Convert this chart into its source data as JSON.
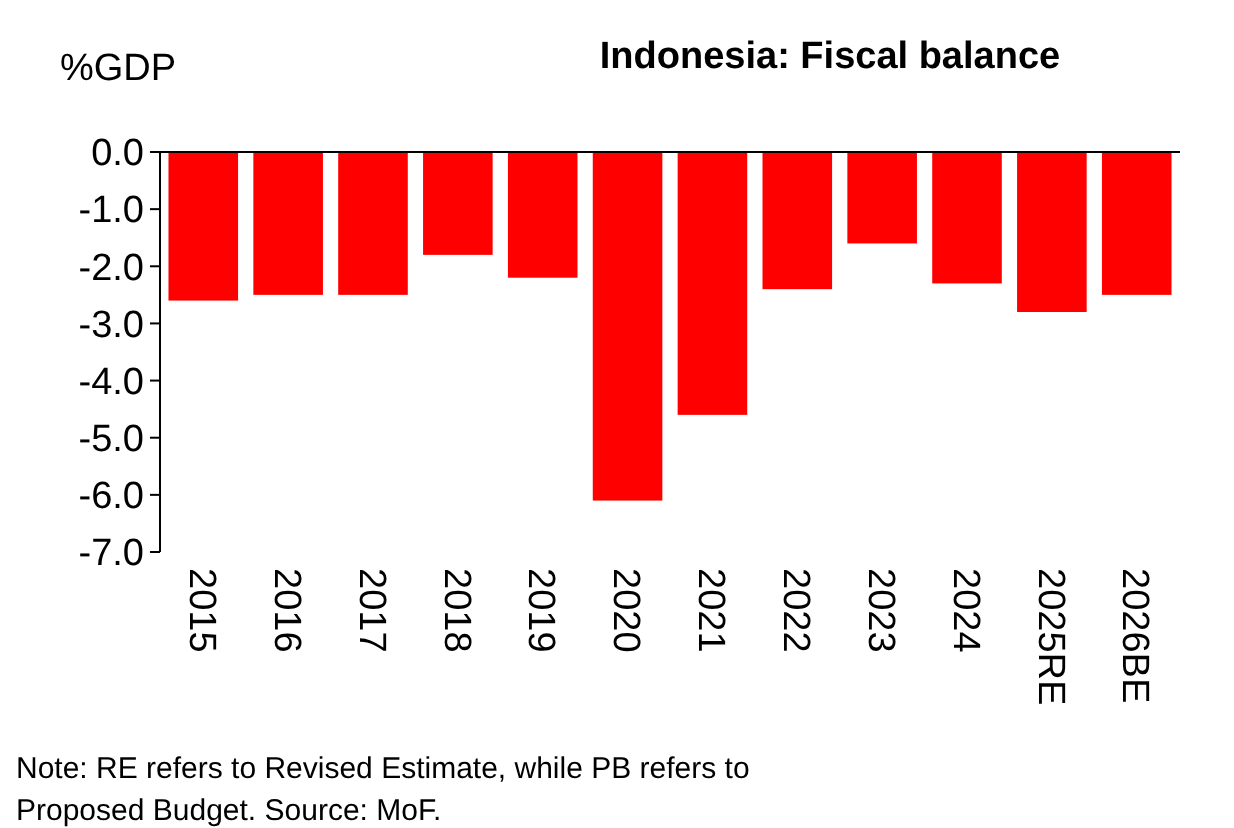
{
  "chart_data": {
    "type": "bar",
    "title": "Indonesia: Fiscal balance",
    "ylabel": "%GDP",
    "categories": [
      "2015",
      "2016",
      "2017",
      "2018",
      "2019",
      "2020",
      "2021",
      "2022",
      "2023",
      "2024",
      "2025RE",
      "2026BE"
    ],
    "values": [
      -2.6,
      -2.5,
      -2.5,
      -1.8,
      -2.2,
      -6.1,
      -4.6,
      -2.4,
      -1.6,
      -2.3,
      -2.8,
      -2.5
    ],
    "color": "#ff0000",
    "ylim": [
      -7,
      0
    ],
    "yticks": [
      {
        "value": 0,
        "label": "0.0"
      },
      {
        "value": -1,
        "label": "-1.0"
      },
      {
        "value": -2,
        "label": "-2.0"
      },
      {
        "value": -3,
        "label": "-3.0"
      },
      {
        "value": -4,
        "label": "-4.0"
      },
      {
        "value": -5,
        "label": "-5.0"
      },
      {
        "value": -6,
        "label": "-6.0"
      },
      {
        "value": -7,
        "label": "-7.0"
      }
    ],
    "grid": false,
    "annotations": [
      "Note: RE refers to Revised Estimate, while PB refers to Proposed Budget. Source: MoF."
    ]
  }
}
